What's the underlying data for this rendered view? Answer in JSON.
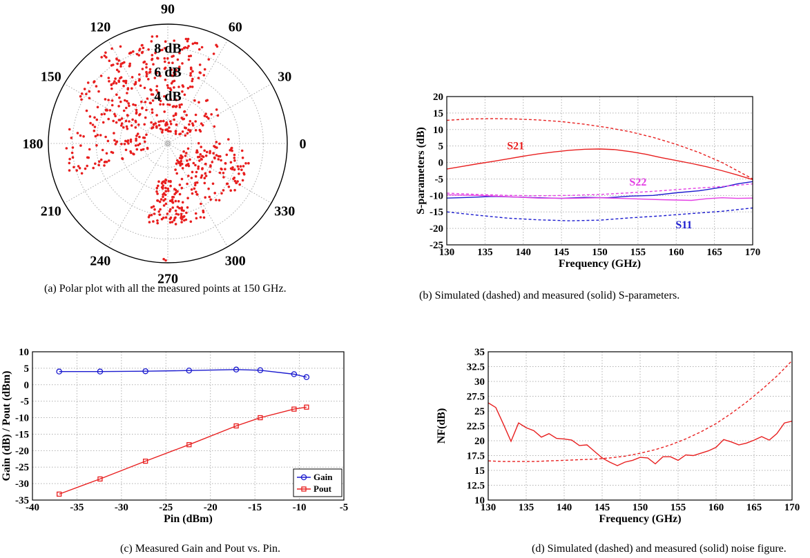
{
  "captions": {
    "a": "(a) Polar plot with all the measured points at 150 GHz.",
    "b": "(b) Simulated (dashed) and measured (solid) S-parameters.",
    "c": "(c) Measured Gain and Pout vs. Pin.",
    "d": "(d) Simulated (dashed) and measured (solid) noise figure."
  },
  "colors": {
    "red": "#e81e1e",
    "blue": "#1a1acf",
    "magenta": "#e43de4",
    "grid": "#b0b0b0"
  },
  "chart_data": [
    {
      "id": "polar",
      "type": "scatter",
      "coordinate_system": "polar",
      "angle_ticks": [
        "0",
        "30",
        "60",
        "90",
        "120",
        "150",
        "180",
        "210",
        "240",
        "270",
        "300",
        "330"
      ],
      "ring_labels": [
        "4 dB",
        "6 dB",
        "8 dB"
      ],
      "ring_label_values": [
        4,
        6,
        8
      ],
      "r_max": 10,
      "rings": [
        2,
        4,
        6,
        8
      ],
      "grid": true,
      "marker_color": "#e81e1e",
      "regions": [
        {
          "a_from": 96,
          "a_to": 128,
          "r_from": 5.5,
          "r_to": 9.3,
          "n": 80
        },
        {
          "a_from": 62,
          "a_to": 96,
          "r_from": 5.6,
          "r_to": 9.3,
          "n": 60
        },
        {
          "a_from": 128,
          "a_to": 200,
          "r_from": 1.5,
          "r_to": 8.6,
          "n": 170
        },
        {
          "a_from": 62,
          "a_to": 128,
          "r_from": 1.0,
          "r_to": 5.6,
          "n": 90
        },
        {
          "a_from": 20,
          "a_to": 62,
          "r_from": 1.0,
          "r_to": 5.0,
          "n": 40
        },
        {
          "a_from": 285,
          "a_to": 350,
          "r_from": 1.5,
          "r_to": 7.0,
          "n": 120
        },
        {
          "a_from": 255,
          "a_to": 285,
          "r_from": 3.0,
          "r_to": 6.8,
          "n": 100
        },
        {
          "a_from": 330,
          "a_to": 365,
          "r_from": 2.5,
          "r_to": 6.8,
          "n": 40
        }
      ],
      "outliers": [
        {
          "a": 268,
          "r": 9.7
        },
        {
          "a": 269,
          "r": 9.8
        }
      ]
    },
    {
      "id": "sparams",
      "type": "line",
      "xlabel": "Frequency (GHz)",
      "ylabel": "S-parameters (dB)",
      "xlim": [
        130,
        170
      ],
      "ylim": [
        -25,
        20
      ],
      "xticks": [
        130,
        135,
        140,
        145,
        150,
        155,
        160,
        165,
        170
      ],
      "yticks": [
        -25,
        -20,
        -15,
        -10,
        -5,
        0,
        5,
        10,
        15,
        20
      ],
      "grid": true,
      "annotations": [
        {
          "text": "S21",
          "x": 139,
          "y": 4.0,
          "color": "#e81e1e"
        },
        {
          "text": "S22",
          "x": 155,
          "y": -7.0,
          "color": "#e43de4"
        },
        {
          "text": "S11",
          "x": 161,
          "y": -20.0,
          "color": "#1a1acf"
        }
      ],
      "series": [
        {
          "color": "#e81e1e",
          "dash": true,
          "x": [
            130,
            133,
            136,
            139,
            142,
            145,
            148,
            151,
            154,
            157,
            160,
            163,
            166,
            168,
            170
          ],
          "y": [
            12.8,
            13.2,
            13.3,
            13.2,
            12.9,
            12.4,
            11.6,
            10.6,
            9.3,
            7.6,
            5.5,
            3.0,
            0.0,
            -2.5,
            -5.0
          ]
        },
        {
          "color": "#e81e1e",
          "dash": false,
          "x": [
            130,
            132,
            134,
            136,
            138,
            140,
            142,
            144,
            146,
            148,
            150,
            152,
            154,
            156,
            158,
            160,
            162,
            164,
            166,
            168,
            170
          ],
          "y": [
            -2.0,
            -1.2,
            -0.4,
            0.3,
            1.1,
            1.9,
            2.6,
            3.2,
            3.7,
            4.0,
            4.1,
            3.9,
            3.3,
            2.5,
            1.5,
            0.6,
            -0.3,
            -1.3,
            -2.5,
            -3.8,
            -5.2
          ]
        },
        {
          "color": "#1a1acf",
          "dash": true,
          "x": [
            130,
            134,
            138,
            142,
            146,
            150,
            154,
            158,
            162,
            166,
            170
          ],
          "y": [
            -15.0,
            -16.0,
            -16.9,
            -17.4,
            -17.7,
            -17.5,
            -16.8,
            -16.2,
            -15.5,
            -14.8,
            -13.8
          ]
        },
        {
          "color": "#1a1acf",
          "dash": false,
          "x": [
            130,
            133,
            136,
            139,
            142,
            145,
            148,
            151,
            154,
            157,
            160,
            163,
            166,
            168,
            170
          ],
          "y": [
            -10.8,
            -10.6,
            -10.3,
            -10.5,
            -10.7,
            -10.9,
            -10.6,
            -10.7,
            -10.2,
            -10.0,
            -9.2,
            -8.6,
            -7.5,
            -6.5,
            -5.8
          ]
        },
        {
          "color": "#e43de4",
          "dash": true,
          "x": [
            130,
            134,
            138,
            142,
            146,
            150,
            154,
            158,
            162,
            166,
            170
          ],
          "y": [
            -9.3,
            -9.7,
            -10.0,
            -10.1,
            -10.0,
            -9.7,
            -9.2,
            -8.6,
            -7.9,
            -7.3,
            -6.5
          ]
        },
        {
          "color": "#e43de4",
          "dash": false,
          "x": [
            130,
            134,
            138,
            142,
            146,
            150,
            154,
            158,
            162,
            164,
            166,
            168,
            170
          ],
          "y": [
            -9.8,
            -10.0,
            -10.4,
            -10.8,
            -10.9,
            -10.7,
            -11.0,
            -11.3,
            -11.5,
            -11.0,
            -10.7,
            -10.9,
            -10.8
          ]
        }
      ]
    },
    {
      "id": "gain",
      "type": "line",
      "xlabel": "Pin (dBm)",
      "ylabel": "Gain (dB) / Pout (dBm)",
      "xlim": [
        -40,
        -5
      ],
      "ylim": [
        -35,
        10
      ],
      "xticks": [
        -40,
        -35,
        -30,
        -25,
        -20,
        -15,
        -10,
        -5
      ],
      "yticks": [
        -35,
        -30,
        -25,
        -20,
        -15,
        -10,
        -5,
        0,
        5,
        10
      ],
      "grid": true,
      "legend": "bottom-right",
      "series": [
        {
          "name": "Gain",
          "color": "#1a1acf",
          "marker": "circle",
          "x": [
            -37.0,
            -32.4,
            -27.3,
            -22.4,
            -17.1,
            -14.4,
            -10.6,
            -9.2
          ],
          "y": [
            4.0,
            4.0,
            4.1,
            4.3,
            4.6,
            4.4,
            3.2,
            2.3
          ]
        },
        {
          "name": "Pout",
          "color": "#e81e1e",
          "marker": "square",
          "x": [
            -37.0,
            -32.4,
            -27.3,
            -22.4,
            -17.1,
            -14.4,
            -10.6,
            -9.2
          ],
          "y": [
            -33.2,
            -28.6,
            -23.2,
            -18.2,
            -12.5,
            -10.0,
            -7.4,
            -6.8
          ]
        }
      ]
    },
    {
      "id": "noise",
      "type": "line",
      "xlabel": "Frequency (GHz)",
      "ylabel": "NF(dB)",
      "xlim": [
        130,
        170
      ],
      "ylim": [
        10,
        35
      ],
      "xticks": [
        130,
        135,
        140,
        145,
        150,
        155,
        160,
        165,
        170
      ],
      "yticks": [
        10,
        12.5,
        15,
        17.5,
        20,
        22.5,
        25,
        27.5,
        30,
        32.5,
        35
      ],
      "ytick_labels": [
        "10",
        "12.5",
        "15",
        "17.5",
        "20",
        "22.5",
        "25",
        "27.5",
        "30",
        "32.5",
        "35"
      ],
      "grid": true,
      "series": [
        {
          "color": "#e81e1e",
          "dash": true,
          "x": [
            130,
            132,
            134,
            136,
            138,
            140,
            142,
            144,
            146,
            148,
            150,
            152,
            154,
            156,
            158,
            160,
            162,
            164,
            166,
            168,
            170
          ],
          "y": [
            16.6,
            16.5,
            16.5,
            16.5,
            16.6,
            16.7,
            16.8,
            16.9,
            17.1,
            17.4,
            17.9,
            18.5,
            19.3,
            20.3,
            21.5,
            22.9,
            24.6,
            26.5,
            28.6,
            30.9,
            33.5
          ]
        },
        {
          "color": "#e81e1e",
          "dash": false,
          "x": [
            130,
            131,
            132,
            133,
            134,
            135,
            136,
            137,
            138,
            139,
            140,
            141,
            142,
            143,
            144,
            145,
            146,
            147,
            148,
            149,
            150,
            151,
            152,
            153,
            154,
            155,
            156,
            157,
            158,
            159,
            160,
            161,
            162,
            163,
            164,
            165,
            166,
            167,
            168,
            169,
            170
          ],
          "y": [
            26.4,
            25.6,
            22.8,
            19.9,
            23.0,
            22.2,
            21.7,
            20.6,
            21.2,
            20.4,
            20.3,
            20.1,
            19.2,
            19.3,
            18.2,
            17.1,
            16.4,
            15.8,
            16.4,
            16.7,
            17.2,
            17.1,
            16.1,
            17.3,
            17.3,
            16.7,
            17.6,
            17.5,
            17.9,
            18.3,
            18.9,
            20.2,
            19.8,
            19.3,
            19.6,
            20.1,
            20.7,
            20.1,
            21.2,
            23.0,
            23.3
          ]
        }
      ]
    }
  ]
}
